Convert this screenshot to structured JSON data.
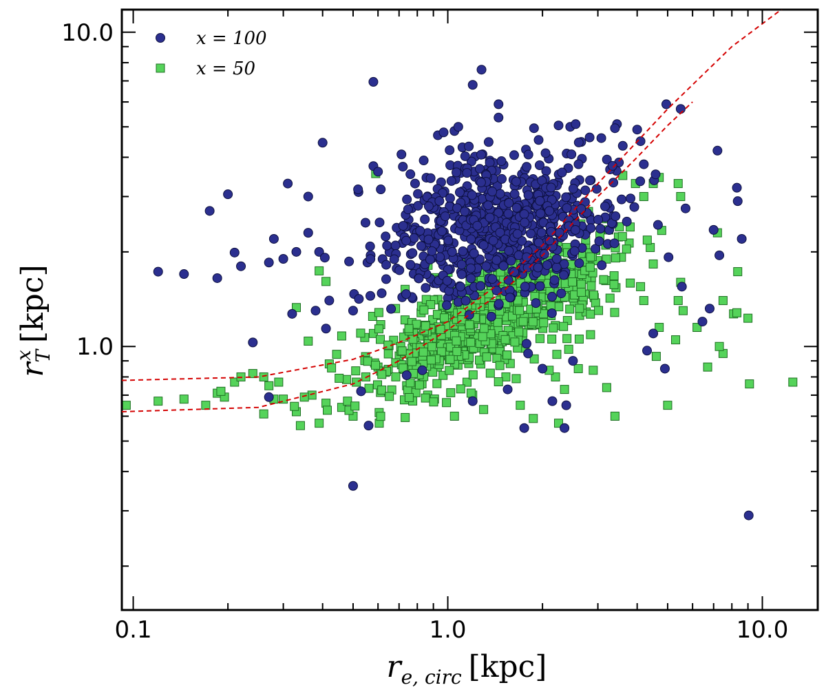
{
  "chart_data": {
    "type": "scatter",
    "title": "",
    "xlabel": "r_{e,circ} [kpc]",
    "ylabel": "r_T^x [kpc]",
    "x_scale": "log",
    "y_scale": "log",
    "xlim": [
      0.092,
      15.0
    ],
    "ylim": [
      0.145,
      11.8
    ],
    "x_ticks": [
      0.1,
      1.0,
      10.0
    ],
    "x_tick_labels": [
      "0.1",
      "1.0",
      "10.0"
    ],
    "y_ticks": [
      1.0,
      10.0
    ],
    "y_tick_labels": [
      "1.0",
      "10.0"
    ],
    "grid": false,
    "legend_position": "top-left",
    "series": [
      {
        "name": "x = 100",
        "marker": "circle",
        "color": "#2b2f8f",
        "edge_color": "#0d1040",
        "cluster": {
          "x_median": 1.45,
          "x_spread": 0.34,
          "y_median": 2.45,
          "y_spread": 0.2
        },
        "points": [
          [
            0.12,
            1.73
          ],
          [
            0.145,
            1.7
          ],
          [
            0.175,
            2.7
          ],
          [
            0.2,
            3.05
          ],
          [
            0.185,
            1.65
          ],
          [
            0.21,
            1.99
          ],
          [
            0.22,
            1.8
          ],
          [
            0.24,
            1.03
          ],
          [
            0.27,
            1.85
          ],
          [
            0.28,
            2.2
          ],
          [
            0.3,
            1.9
          ],
          [
            0.31,
            3.3
          ],
          [
            0.33,
            2.0
          ],
          [
            0.36,
            2.3
          ],
          [
            0.39,
            2.0
          ],
          [
            0.42,
            1.4
          ],
          [
            0.4,
            4.45
          ],
          [
            0.36,
            3.0
          ],
          [
            0.27,
            0.69
          ],
          [
            0.32,
            1.27
          ],
          [
            0.38,
            1.3
          ],
          [
            0.41,
            1.14
          ],
          [
            0.5,
            1.3
          ],
          [
            0.53,
            0.72
          ],
          [
            0.56,
            0.56
          ],
          [
            0.5,
            0.36
          ],
          [
            0.52,
            3.1
          ],
          [
            0.58,
            3.75
          ],
          [
            0.6,
            3.6
          ],
          [
            0.58,
            6.95
          ],
          [
            0.74,
            0.81
          ],
          [
            0.83,
            0.84
          ],
          [
            0.93,
            4.7
          ],
          [
            0.97,
            4.8
          ],
          [
            1.05,
            4.85
          ],
          [
            1.08,
            5.0
          ],
          [
            1.2,
            6.8
          ],
          [
            1.28,
            7.6
          ],
          [
            1.45,
            5.9
          ],
          [
            1.45,
            5.35
          ],
          [
            1.88,
            4.95
          ],
          [
            2.25,
            5.05
          ],
          [
            2.45,
            5.0
          ],
          [
            2.55,
            5.1
          ],
          [
            3.45,
            5.1
          ],
          [
            3.4,
            4.95
          ],
          [
            4.0,
            4.9
          ],
          [
            4.1,
            4.5
          ],
          [
            3.6,
            4.35
          ],
          [
            3.5,
            3.85
          ],
          [
            4.2,
            3.8
          ],
          [
            4.95,
            5.9
          ],
          [
            5.5,
            5.7
          ],
          [
            5.7,
            2.75
          ],
          [
            7.2,
            4.2
          ],
          [
            7.0,
            2.35
          ],
          [
            8.3,
            3.2
          ],
          [
            8.35,
            2.9
          ],
          [
            8.6,
            2.2
          ],
          [
            7.3,
            1.95
          ],
          [
            6.8,
            1.32
          ],
          [
            6.45,
            1.2
          ],
          [
            4.9,
            0.85
          ],
          [
            4.5,
            1.1
          ],
          [
            5.55,
            1.55
          ],
          [
            4.3,
            0.97
          ],
          [
            2.38,
            0.65
          ],
          [
            1.75,
            0.55
          ],
          [
            1.2,
            0.67
          ],
          [
            1.55,
            0.73
          ],
          [
            2.15,
            0.67
          ],
          [
            2.0,
            0.85
          ],
          [
            1.8,
            0.95
          ],
          [
            1.45,
            1.35
          ],
          [
            9.05,
            0.29
          ],
          [
            2.35,
            0.55
          ],
          [
            1.78,
            1.02
          ],
          [
            2.5,
            0.9
          ]
        ]
      },
      {
        "name": "x = 50",
        "marker": "square",
        "color": "#55d35a",
        "edge_color": "#1e6e22",
        "cluster": {
          "x_median": 1.35,
          "x_spread": 0.36,
          "y_median": 1.25,
          "y_spread": 0.15
        },
        "points": [
          [
            0.095,
            0.65
          ],
          [
            0.12,
            0.67
          ],
          [
            0.145,
            0.68
          ],
          [
            0.17,
            0.65
          ],
          [
            0.185,
            0.71
          ],
          [
            0.195,
            0.69
          ],
          [
            0.21,
            0.77
          ],
          [
            0.19,
            0.72
          ],
          [
            0.22,
            0.8
          ],
          [
            0.24,
            0.82
          ],
          [
            0.26,
            0.8
          ],
          [
            0.27,
            0.75
          ],
          [
            0.29,
            0.77
          ],
          [
            0.26,
            0.61
          ],
          [
            0.28,
            0.68
          ],
          [
            0.3,
            0.68
          ],
          [
            0.34,
            0.56
          ],
          [
            0.33,
            0.62
          ],
          [
            0.37,
            0.7
          ],
          [
            0.39,
            0.57
          ],
          [
            0.35,
            0.69
          ],
          [
            0.41,
            0.66
          ],
          [
            0.46,
            0.64
          ],
          [
            0.48,
            0.67
          ],
          [
            0.5,
            0.6
          ],
          [
            0.42,
            0.88
          ],
          [
            0.36,
            1.04
          ],
          [
            0.33,
            1.33
          ],
          [
            0.39,
            1.74
          ],
          [
            0.41,
            1.61
          ],
          [
            0.46,
            1.08
          ],
          [
            0.59,
            3.55
          ],
          [
            0.58,
            1.1
          ],
          [
            0.74,
            0.75
          ],
          [
            0.6,
            0.86
          ],
          [
            1.05,
            0.6
          ],
          [
            1.2,
            0.7
          ],
          [
            1.3,
            0.63
          ],
          [
            1.53,
            0.8
          ],
          [
            1.65,
            0.79
          ],
          [
            1.7,
            0.65
          ],
          [
            1.87,
            0.59
          ],
          [
            2.25,
            0.57
          ],
          [
            2.2,
            0.8
          ],
          [
            2.35,
            0.73
          ],
          [
            2.1,
            0.84
          ],
          [
            2.6,
            0.85
          ],
          [
            2.9,
            0.84
          ],
          [
            3.4,
            0.6
          ],
          [
            3.2,
            0.74
          ],
          [
            5.0,
            0.65
          ],
          [
            4.6,
            0.93
          ],
          [
            5.3,
            1.05
          ],
          [
            6.7,
            0.86
          ],
          [
            7.5,
            0.95
          ],
          [
            9.1,
            0.76
          ],
          [
            12.5,
            0.77
          ],
          [
            7.3,
            1.0
          ],
          [
            7.5,
            1.4
          ],
          [
            8.1,
            1.27
          ],
          [
            8.3,
            1.28
          ],
          [
            8.35,
            1.73
          ],
          [
            9.0,
            1.23
          ],
          [
            6.2,
            1.15
          ],
          [
            5.4,
            1.4
          ],
          [
            5.6,
            1.3
          ],
          [
            5.5,
            1.6
          ],
          [
            4.2,
            1.4
          ],
          [
            4.1,
            1.55
          ],
          [
            4.5,
            1.83
          ],
          [
            4.7,
            1.15
          ],
          [
            3.6,
            3.5
          ],
          [
            4.2,
            3.0
          ],
          [
            4.5,
            3.3
          ],
          [
            4.7,
            3.45
          ],
          [
            5.4,
            3.3
          ],
          [
            5.5,
            3.0
          ],
          [
            3.95,
            3.3
          ],
          [
            3.8,
            2.4
          ],
          [
            3.2,
            2.55
          ],
          [
            3.25,
            2.35
          ],
          [
            7.2,
            2.3
          ]
        ]
      }
    ],
    "fit_lines": [
      {
        "style": "dashed",
        "color": "#d40000",
        "points": [
          [
            0.092,
            0.78
          ],
          [
            0.25,
            0.8
          ],
          [
            0.5,
            0.91
          ],
          [
            0.7,
            1.03
          ],
          [
            1.0,
            1.2
          ],
          [
            1.5,
            1.62
          ],
          [
            2.0,
            2.1
          ],
          [
            3.0,
            3.3
          ],
          [
            5.0,
            5.7
          ],
          [
            8.0,
            9.0
          ],
          [
            12.0,
            12.2
          ]
        ]
      },
      {
        "style": "dashed",
        "color": "#d40000",
        "points": [
          [
            0.092,
            0.62
          ],
          [
            0.25,
            0.64
          ],
          [
            0.5,
            0.76
          ],
          [
            0.7,
            0.9
          ],
          [
            1.0,
            1.13
          ],
          [
            1.5,
            1.5
          ],
          [
            2.0,
            1.95
          ],
          [
            3.0,
            3.0
          ],
          [
            4.0,
            4.0
          ],
          [
            5.0,
            5.05
          ],
          [
            6.0,
            6.0
          ]
        ]
      }
    ]
  },
  "legend": {
    "items": [
      {
        "label": "x = 100",
        "marker": "circle"
      },
      {
        "label": "x = 50",
        "marker": "square"
      }
    ]
  },
  "axes": {
    "xlabel_display": "r",
    "xlabel_sub": "e, circ",
    "xlabel_unit": "[kpc]",
    "ylabel_display": "r",
    "ylabel_sub": "T",
    "ylabel_sup": "x",
    "ylabel_unit": "[kpc]"
  }
}
